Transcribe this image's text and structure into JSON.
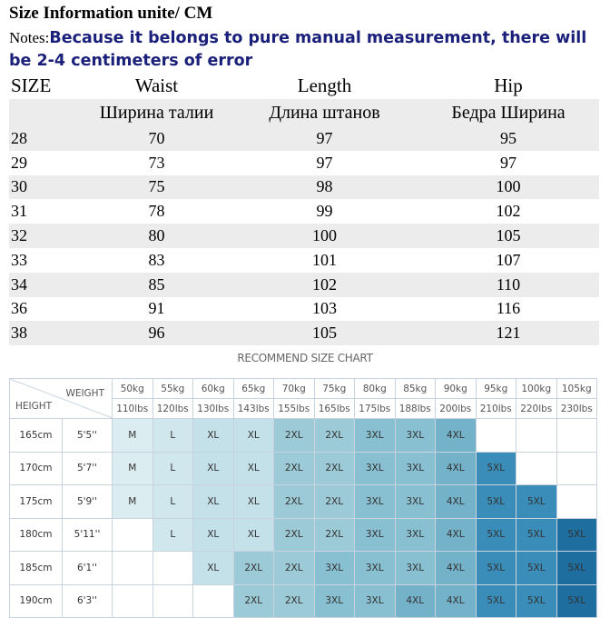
{
  "title": "Size Information unite/ CM",
  "notes": {
    "label": "Notes:",
    "text": "Because it belongs to pure manual measurement, there will be 2-4 centimeters of error"
  },
  "size_table": {
    "headers": [
      "SIZE",
      "Waist",
      "Length",
      "Hip"
    ],
    "subheaders": [
      "",
      "Ширина талии",
      "Длина штанов",
      "Бедра Ширина"
    ],
    "rows": [
      [
        "28",
        "70",
        "97",
        "95"
      ],
      [
        "29",
        "73",
        "97",
        "97"
      ],
      [
        "30",
        "75",
        "98",
        "100"
      ],
      [
        "31",
        "78",
        "99",
        "102"
      ],
      [
        "32",
        "80",
        "100",
        "105"
      ],
      [
        "33",
        "83",
        "101",
        "107"
      ],
      [
        "34",
        "85",
        "102",
        "110"
      ],
      [
        "36",
        "91",
        "103",
        "116"
      ],
      [
        "38",
        "96",
        "105",
        "121"
      ]
    ]
  },
  "recommend": {
    "title": "RECOMMEND SIZE CHART",
    "weight_label": "WEIGHT",
    "height_label": "HEIGHT",
    "weights_kg": [
      "50kg",
      "55kg",
      "60kg",
      "65kg",
      "70kg",
      "75kg",
      "80kg",
      "85kg",
      "90kg",
      "95kg",
      "100kg",
      "105kg"
    ],
    "weights_lbs": [
      "110lbs",
      "120lbs",
      "130lbs",
      "143lbs",
      "155lbs",
      "165lbs",
      "175lbs",
      "188lbs",
      "200lbs",
      "210lbs",
      "220lbs",
      "230lbs"
    ],
    "rows": [
      {
        "cm": "165cm",
        "ft": "5'5''",
        "sizes": [
          "M",
          "L",
          "XL",
          "XL",
          "2XL",
          "2XL",
          "3XL",
          "3XL",
          "4XL",
          "",
          "",
          ""
        ]
      },
      {
        "cm": "170cm",
        "ft": "5'7''",
        "sizes": [
          "M",
          "L",
          "XL",
          "XL",
          "2XL",
          "2XL",
          "3XL",
          "3XL",
          "4XL",
          "5XL",
          "",
          ""
        ]
      },
      {
        "cm": "175cm",
        "ft": "5'9''",
        "sizes": [
          "M",
          "L",
          "XL",
          "XL",
          "2XL",
          "2XL",
          "3XL",
          "3XL",
          "4XL",
          "5XL",
          "5XL",
          ""
        ]
      },
      {
        "cm": "180cm",
        "ft": "5'11''",
        "sizes": [
          "",
          "L",
          "XL",
          "XL",
          "2XL",
          "2XL",
          "3XL",
          "3XL",
          "4XL",
          "5XL",
          "5XL",
          "5XL"
        ]
      },
      {
        "cm": "185cm",
        "ft": "6'1''",
        "sizes": [
          "",
          "",
          "XL",
          "2XL",
          "2XL",
          "3XL",
          "3XL",
          "3XL",
          "4XL",
          "5XL",
          "5XL",
          "5XL"
        ]
      },
      {
        "cm": "190cm",
        "ft": "6'3''",
        "sizes": [
          "",
          "",
          "",
          "2XL",
          "2XL",
          "3XL",
          "3XL",
          "4XL",
          "4XL",
          "5XL",
          "5XL",
          "5XL"
        ]
      }
    ],
    "size_colors": {
      "M": "#dcedf2",
      "L": "#d0e7ee",
      "XL": "#c4e1ea",
      "2XL": "#9ccad6",
      "3XL": "#88bfd1",
      "4XL": "#74b2ca",
      "5XL": "#3a8db8"
    },
    "five_xl_dark": "#1f6ea0"
  }
}
